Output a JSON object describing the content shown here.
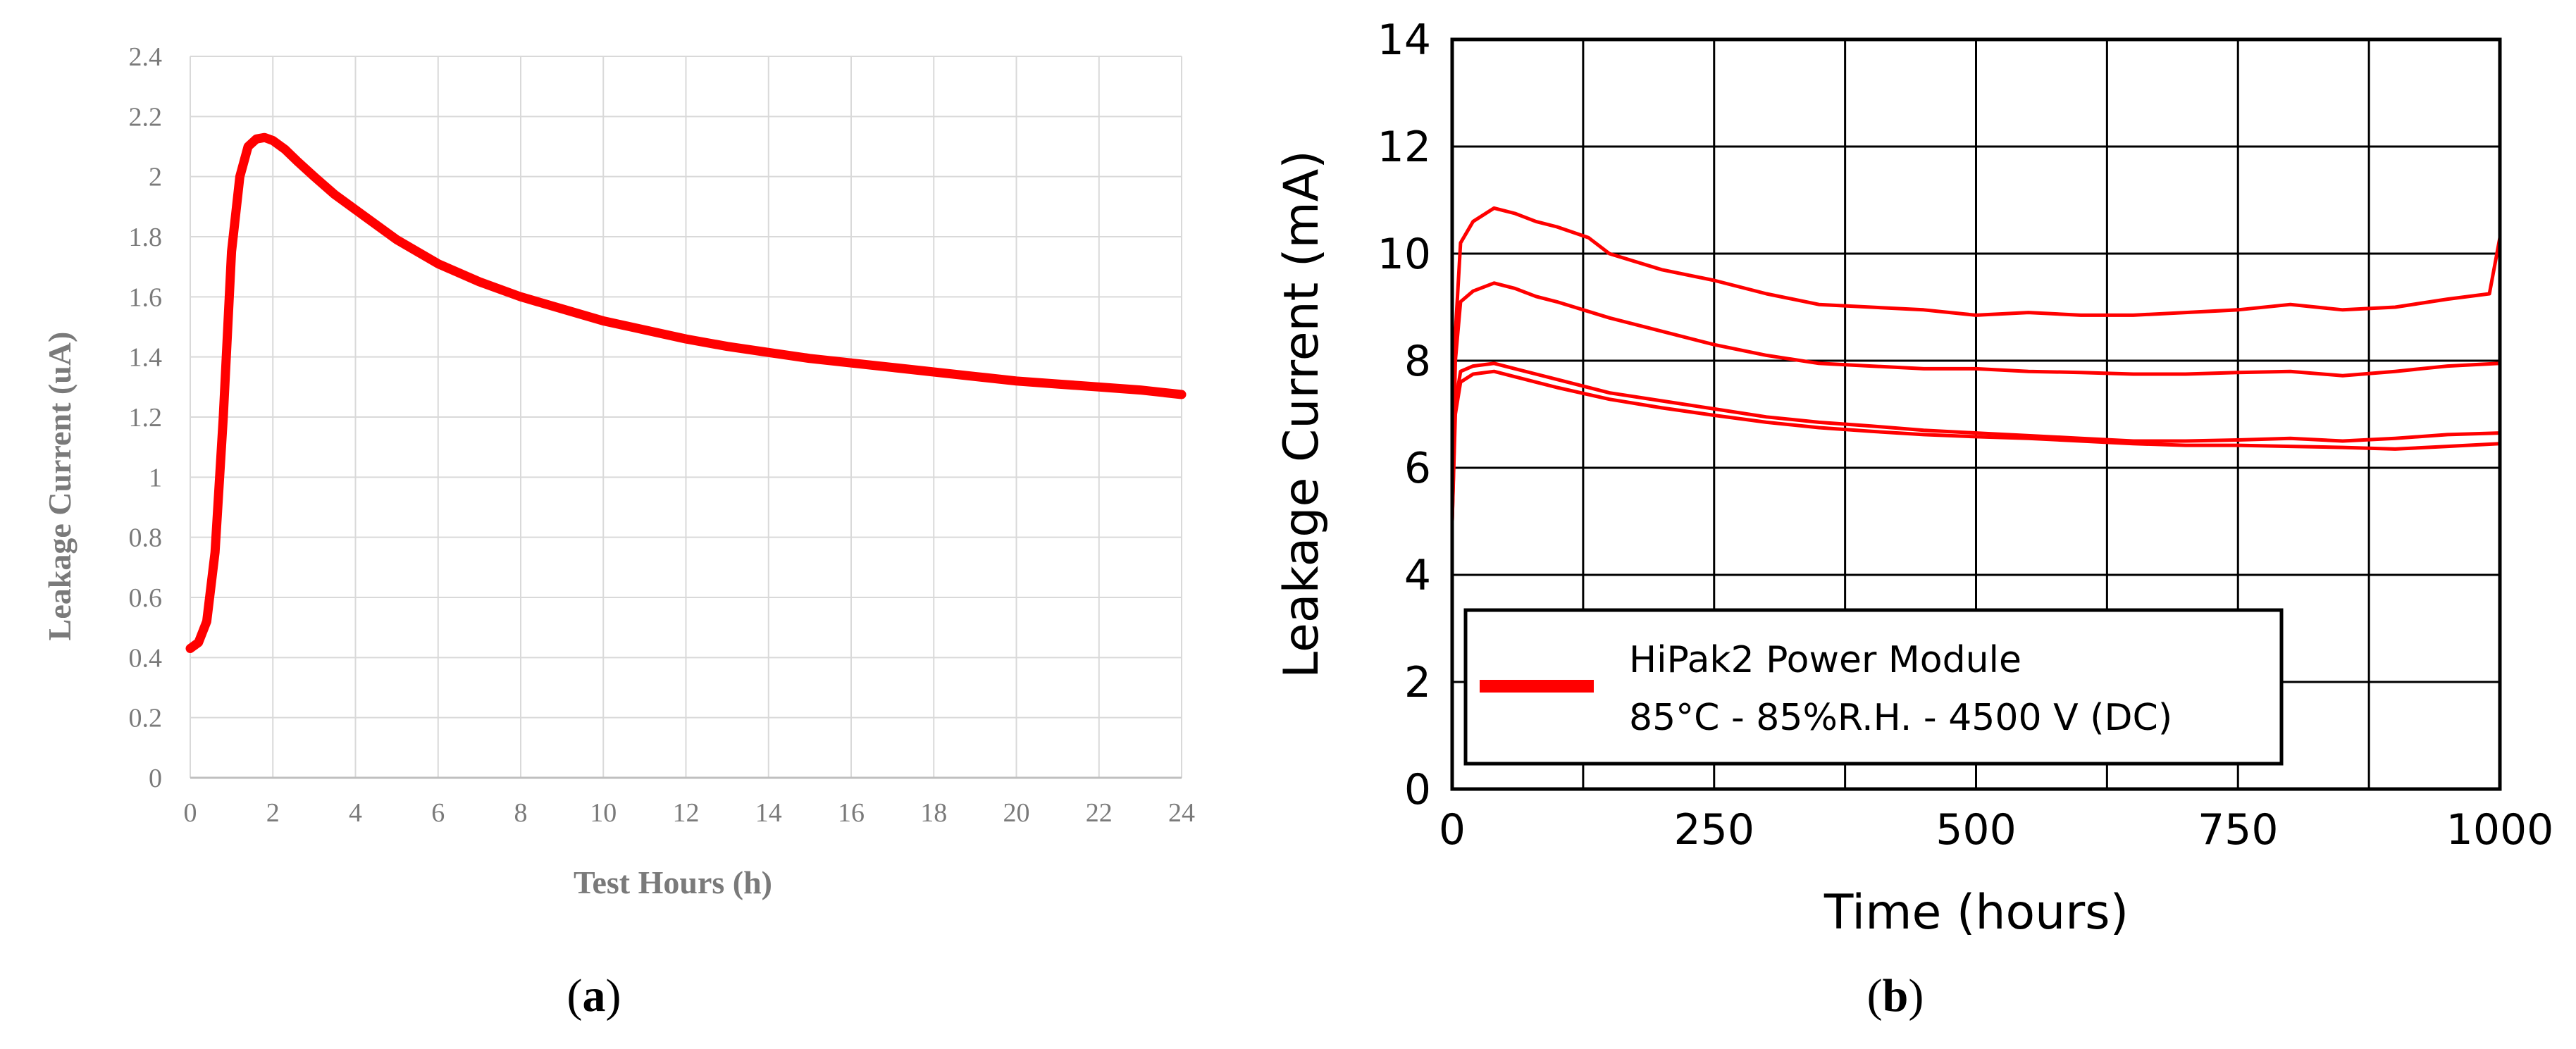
{
  "chart_data": [
    {
      "type": "line",
      "panel_label": "a",
      "title": "",
      "xlabel": "Test Hours (h)",
      "ylabel": "Leakage Current (uA)",
      "xlim": [
        0,
        24
      ],
      "ylim": [
        0,
        2.4
      ],
      "x_ticks": [
        "0",
        "2",
        "4",
        "6",
        "8",
        "10",
        "12",
        "14",
        "16",
        "18",
        "20",
        "22",
        "24"
      ],
      "y_ticks": [
        "0",
        "0.2",
        "0.4",
        "0.6",
        "0.8",
        "1",
        "1.2",
        "1.4",
        "1.6",
        "1.8",
        "2",
        "2.2",
        "2.4"
      ],
      "grid": true,
      "series": [
        {
          "color": "#ff0000",
          "x": [
            0,
            0.2,
            0.4,
            0.6,
            0.8,
            1.0,
            1.2,
            1.4,
            1.6,
            1.8,
            2.0,
            2.3,
            2.6,
            3.0,
            3.5,
            4.0,
            5.0,
            6.0,
            7.0,
            8.0,
            9.0,
            10.0,
            11.0,
            12.0,
            13.0,
            14.0,
            15.0,
            16.0,
            17.0,
            18.0,
            19.0,
            20.0,
            21.0,
            22.0,
            23.0,
            24.0
          ],
          "y": [
            0.43,
            0.45,
            0.52,
            0.75,
            1.2,
            1.75,
            2.0,
            2.1,
            2.125,
            2.13,
            2.12,
            2.09,
            2.05,
            2.0,
            1.94,
            1.89,
            1.79,
            1.71,
            1.65,
            1.6,
            1.56,
            1.52,
            1.49,
            1.46,
            1.435,
            1.415,
            1.395,
            1.38,
            1.365,
            1.35,
            1.335,
            1.32,
            1.31,
            1.3,
            1.29,
            1.275
          ]
        }
      ]
    },
    {
      "type": "line",
      "panel_label": "b",
      "title": "",
      "xlabel": "Time (hours)",
      "ylabel": "Leakage Current (mA)",
      "xlim": [
        0,
        1000
      ],
      "ylim": [
        0,
        14
      ],
      "x_ticks": [
        "0",
        "250",
        "500",
        "750",
        "1000"
      ],
      "y_ticks": [
        "0",
        "2",
        "4",
        "6",
        "8",
        "10",
        "12",
        "14"
      ],
      "grid": true,
      "legend": {
        "position": "lower-left",
        "entries": [
          "HiPak2 Power Module",
          "85°C - 85%R.H. - 4500 V (DC)"
        ]
      },
      "series": [
        {
          "color": "#ff0000",
          "x": [
            0,
            3,
            8,
            20,
            40,
            60,
            80,
            100,
            130,
            150,
            200,
            250,
            300,
            350,
            400,
            450,
            500,
            550,
            600,
            650,
            700,
            750,
            800,
            850,
            900,
            950,
            990,
            1000
          ],
          "y": [
            5.0,
            8.5,
            10.2,
            10.6,
            10.85,
            10.75,
            10.6,
            10.5,
            10.3,
            10.0,
            9.7,
            9.5,
            9.25,
            9.05,
            9.0,
            8.95,
            8.85,
            8.9,
            8.85,
            8.85,
            8.9,
            8.95,
            9.05,
            8.95,
            9.0,
            9.15,
            9.25,
            10.3
          ]
        },
        {
          "color": "#ff0000",
          "x": [
            0,
            3,
            8,
            20,
            40,
            60,
            80,
            100,
            150,
            200,
            250,
            300,
            350,
            400,
            450,
            500,
            550,
            600,
            650,
            700,
            750,
            800,
            850,
            900,
            950,
            1000
          ],
          "y": [
            5.0,
            8.0,
            9.1,
            9.3,
            9.45,
            9.35,
            9.2,
            9.1,
            8.8,
            8.55,
            8.3,
            8.1,
            7.95,
            7.9,
            7.85,
            7.85,
            7.8,
            7.78,
            7.75,
            7.75,
            7.78,
            7.8,
            7.72,
            7.8,
            7.9,
            7.95
          ]
        },
        {
          "color": "#ff0000",
          "x": [
            0,
            3,
            8,
            20,
            40,
            60,
            80,
            100,
            150,
            200,
            250,
            300,
            350,
            400,
            450,
            500,
            550,
            600,
            650,
            700,
            750,
            800,
            850,
            900,
            950,
            1000
          ],
          "y": [
            5.0,
            7.2,
            7.8,
            7.9,
            7.95,
            7.85,
            7.75,
            7.65,
            7.4,
            7.25,
            7.1,
            6.95,
            6.85,
            6.78,
            6.7,
            6.65,
            6.6,
            6.55,
            6.5,
            6.5,
            6.52,
            6.55,
            6.5,
            6.55,
            6.62,
            6.65
          ]
        },
        {
          "color": "#ff0000",
          "x": [
            0,
            3,
            8,
            20,
            40,
            60,
            80,
            100,
            150,
            200,
            250,
            300,
            350,
            400,
            450,
            500,
            550,
            600,
            650,
            700,
            750,
            800,
            850,
            900,
            950,
            1000
          ],
          "y": [
            5.0,
            7.0,
            7.6,
            7.75,
            7.8,
            7.7,
            7.6,
            7.5,
            7.28,
            7.12,
            6.98,
            6.85,
            6.75,
            6.68,
            6.62,
            6.58,
            6.55,
            6.5,
            6.45,
            6.42,
            6.42,
            6.4,
            6.38,
            6.35,
            6.4,
            6.45
          ]
        }
      ]
    }
  ]
}
